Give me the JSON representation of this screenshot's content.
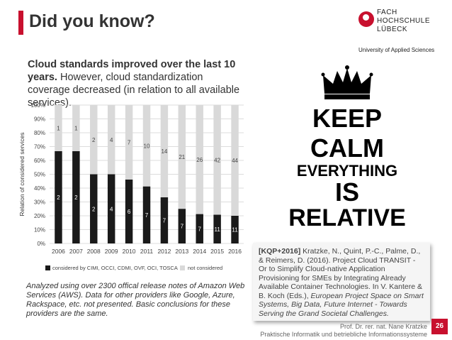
{
  "header": {
    "title": "Did you know?",
    "logo": {
      "line1": "FACH",
      "line2": "HOCHSCHULE",
      "line3": "LÜBECK",
      "line4": "University of Applied Sciences"
    }
  },
  "intro": {
    "bold": "Cloud standards improved over the last 10 years.",
    "rest": " However, cloud standardization coverage decreased (in relation to all available services)."
  },
  "note": "Analyzed using over 2300 offical release notes of Amazon Web Services (AWS). Data for other providers like Google, Azure, Rackspace, etc. not presented. Basic conclusions for these providers are the same.",
  "poster": {
    "line1": "KEEP",
    "line2": "CALM",
    "line3": "EVERYTHING",
    "line4": "IS",
    "line5": "RELATIVE"
  },
  "reference": {
    "tag": "[KQP+2016]",
    "text1": " Kratzke, N., Quint, P.-C., Palme, D., & Reimers, D. (2016). Project Cloud TRANSIT - Or to Simplify Cloud-native Application Provisioning for SMEs by Integrating Already Available Container Technologies. In V. Kantere & B. Koch (Eds.), ",
    "italic": "European Project Space on Smart Systems, Big Data, Future Internet - Towards Serving the Grand Societal Challenges.",
    "text2": ""
  },
  "footer": {
    "author": "Prof. Dr. rer. nat. Nane Kratzke",
    "dept": "Praktische Informatik und betriebliche Informationssysteme",
    "page": "26"
  },
  "colors": {
    "accent": "#c8102e",
    "considered": "#1a1a1a",
    "not_considered": "#d9d9d9"
  },
  "chart_data": {
    "type": "bar",
    "stacked": "percent",
    "ylabel": "Relation of considered services",
    "xlabel": "",
    "ylim": [
      0,
      100
    ],
    "yticks": [
      "0%",
      "10%",
      "20%",
      "30%",
      "40%",
      "50%",
      "60%",
      "70%",
      "80%",
      "90%",
      "100%"
    ],
    "categories": [
      "2006",
      "2007",
      "2008",
      "2009",
      "2010",
      "2011",
      "2012",
      "2013",
      "2014",
      "2015",
      "2016"
    ],
    "series": [
      {
        "name": "considered by CIMI, OCCI, CDMI, OVF, OCI, TOSCA",
        "values": [
          2,
          2,
          2,
          4,
          6,
          7,
          7,
          7,
          7,
          11,
          11
        ],
        "labels": [
          "2",
          "2",
          "2",
          "4",
          "6",
          "7",
          "7",
          "7",
          "7",
          "11",
          "11"
        ]
      },
      {
        "name": "not considered",
        "values": [
          1,
          1,
          2,
          4,
          7,
          10,
          14,
          21,
          26,
          42,
          44
        ],
        "labels": [
          "1",
          "1",
          "2",
          "4",
          "7",
          "10",
          "14",
          "21",
          "26",
          "42",
          "44"
        ]
      }
    ]
  }
}
